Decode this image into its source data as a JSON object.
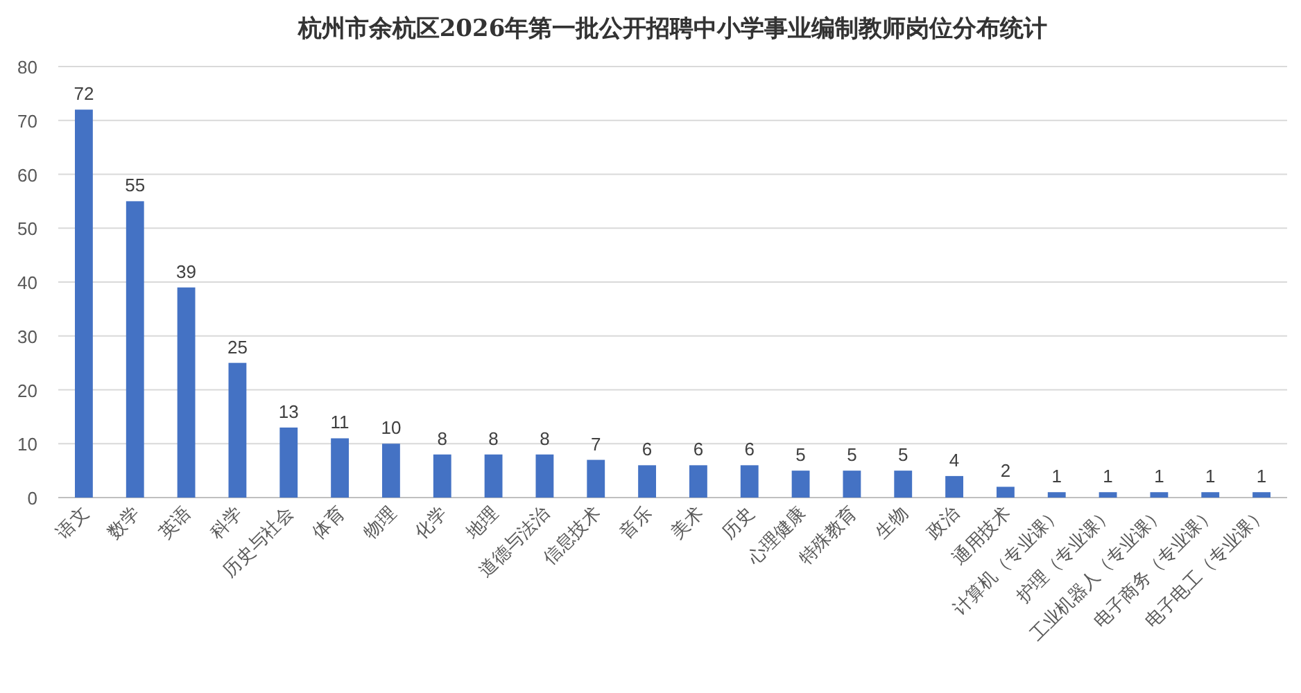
{
  "chart_data": {
    "type": "bar",
    "title": "杭州市余杭区2026年第一批公开招聘中小学事业编制教师岗位分布统计",
    "categories": [
      "语文",
      "数学",
      "英语",
      "科学",
      "历史与社会",
      "体育",
      "物理",
      "化学",
      "地理",
      "道德与法治",
      "信息技术",
      "音乐",
      "美术",
      "历史",
      "心理健康",
      "特殊教育",
      "生物",
      "政治",
      "通用技术",
      "计算机（专业课）",
      "护理（专业课）",
      "工业机器人（专业课）",
      "电子商务（专业课）",
      "电子电工（专业课）"
    ],
    "values": [
      72,
      55,
      39,
      25,
      13,
      11,
      10,
      8,
      8,
      8,
      7,
      6,
      6,
      6,
      5,
      5,
      5,
      4,
      2,
      1,
      1,
      1,
      1,
      1
    ],
    "color": "#4472c4",
    "data_labels": true,
    "grid": "y",
    "ylim": [
      0,
      80
    ],
    "yticks": [
      0,
      10,
      20,
      30,
      40,
      50,
      60,
      70,
      80
    ]
  }
}
